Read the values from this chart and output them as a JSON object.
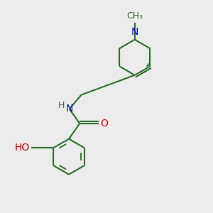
{
  "background_color": "#ececec",
  "bond_color": "#2d6b2d",
  "N_color": "#0000cc",
  "O_color": "#cc0000",
  "H_color": "#555555",
  "line_width": 1.5,
  "font_size": 10,
  "figsize": [
    3.0,
    3.0
  ],
  "dpi": 100,
  "xlim": [
    0,
    10
  ],
  "ylim": [
    0,
    10
  ]
}
